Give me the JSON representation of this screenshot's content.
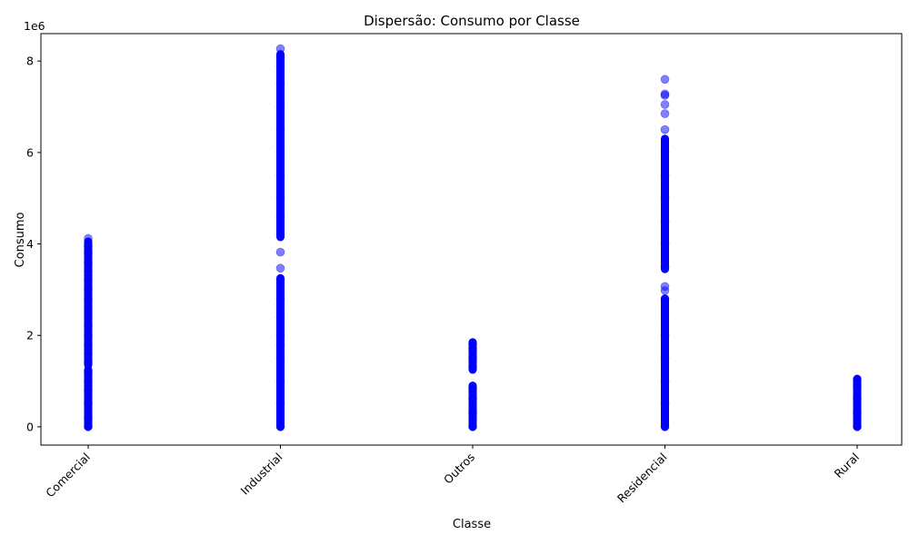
{
  "chart_data": {
    "type": "scatter",
    "title": "Dispersão: Consumo por Classe",
    "xlabel": "Classe",
    "ylabel": "Consumo",
    "y_offset_label": "1e6",
    "categories": [
      "Comercial",
      "Industrial",
      "Outros",
      "Residencial",
      "Rural"
    ],
    "ylim": [
      -0.4,
      8.6
    ],
    "yticks": [
      0,
      2,
      4,
      6,
      8
    ],
    "y_scale_note": "values in millions (×1e6)",
    "grid": false,
    "marker_color": "#0000ff",
    "marker_alpha": 0.5,
    "series": [
      {
        "category": "Comercial",
        "ranges": [
          [
            0.0,
            1.25
          ],
          [
            1.35,
            4.05
          ]
        ],
        "points": [
          0.0,
          0.2,
          0.5,
          0.8,
          1.0,
          1.2,
          1.4,
          1.6,
          1.8,
          2.0,
          2.2,
          2.4,
          2.6,
          2.8,
          3.0,
          3.2,
          3.4,
          3.6,
          3.8,
          3.95,
          4.12
        ]
      },
      {
        "category": "Industrial",
        "ranges": [
          [
            0.0,
            1.8
          ],
          [
            1.85,
            3.25
          ],
          [
            4.15,
            8.15
          ]
        ],
        "points": [
          0.0,
          0.5,
          1.0,
          1.5,
          1.8,
          2.0,
          2.4,
          2.8,
          3.2,
          3.47,
          3.82,
          4.2,
          4.6,
          5.0,
          5.5,
          6.0,
          6.5,
          7.0,
          7.5,
          7.9,
          8.1,
          8.27
        ]
      },
      {
        "category": "Outros",
        "ranges": [
          [
            0.0,
            0.9
          ],
          [
            1.25,
            1.85
          ]
        ],
        "points": [
          0.0,
          0.3,
          0.6,
          0.85,
          1.3,
          1.5,
          1.7,
          1.82
        ]
      },
      {
        "category": "Residencial",
        "ranges": [
          [
            0.0,
            2.8
          ],
          [
            3.45,
            6.3
          ]
        ],
        "points": [
          0.0,
          0.5,
          1.0,
          1.5,
          2.0,
          2.5,
          2.8,
          2.98,
          3.07,
          3.5,
          4.0,
          4.5,
          5.0,
          5.5,
          6.0,
          6.5,
          6.85,
          7.05,
          7.25,
          7.28,
          7.6
        ]
      },
      {
        "category": "Rural",
        "ranges": [
          [
            0.0,
            1.05
          ]
        ],
        "points": [
          0.0,
          0.3,
          0.6,
          0.9,
          1.03
        ]
      }
    ]
  }
}
